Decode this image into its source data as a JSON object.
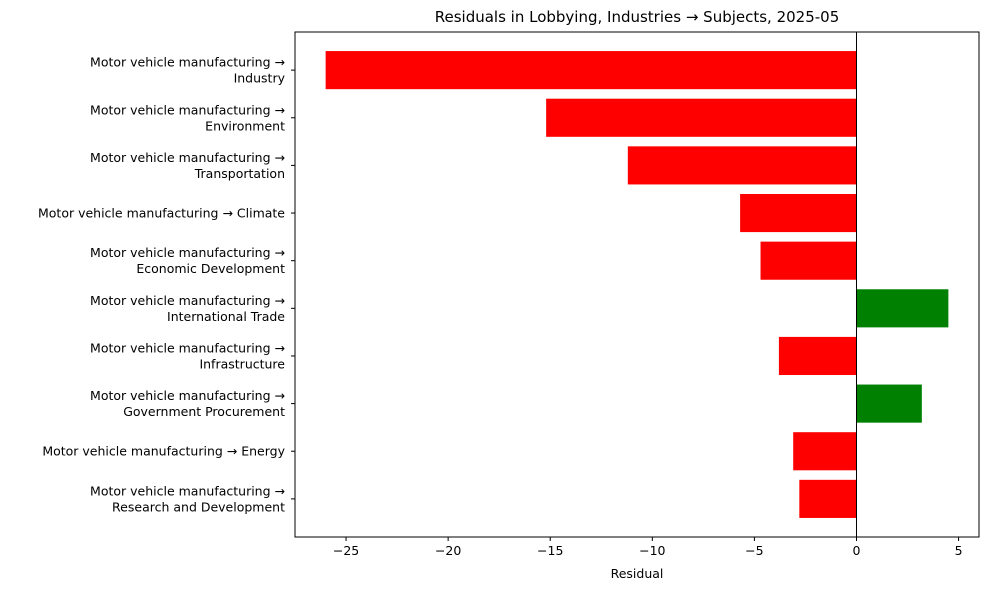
{
  "chart_data": {
    "type": "bar",
    "orientation": "horizontal",
    "title": "Residuals in Lobbying, Industries → Subjects, 2025-05",
    "xlabel": "Residual",
    "ylabel": "",
    "xlim": [
      -27.5,
      6.0
    ],
    "xticks": [
      -25,
      -20,
      -15,
      -10,
      -5,
      0,
      5
    ],
    "xtick_labels": [
      "−25",
      "−20",
      "−15",
      "−10",
      "−5",
      "0",
      "5"
    ],
    "categories": [
      [
        "Motor vehicle manufacturing →",
        "Industry"
      ],
      [
        "Motor vehicle manufacturing →",
        "Environment"
      ],
      [
        "Motor vehicle manufacturing →",
        "Transportation"
      ],
      [
        "Motor vehicle manufacturing → Climate"
      ],
      [
        "Motor vehicle manufacturing →",
        "Economic Development"
      ],
      [
        "Motor vehicle manufacturing →",
        "International Trade"
      ],
      [
        "Motor vehicle manufacturing →",
        "Infrastructure"
      ],
      [
        "Motor vehicle manufacturing →",
        "Government Procurement"
      ],
      [
        "Motor vehicle manufacturing → Energy"
      ],
      [
        "Motor vehicle manufacturing →",
        "Research and Development"
      ]
    ],
    "values": [
      -26.0,
      -15.2,
      -11.2,
      -5.7,
      -4.7,
      4.5,
      -3.8,
      3.2,
      -3.1,
      -2.8
    ],
    "colors": {
      "negative": "#ff0000",
      "positive": "#008000",
      "zero_line": "#000000"
    },
    "grid": false,
    "legend": "none"
  }
}
